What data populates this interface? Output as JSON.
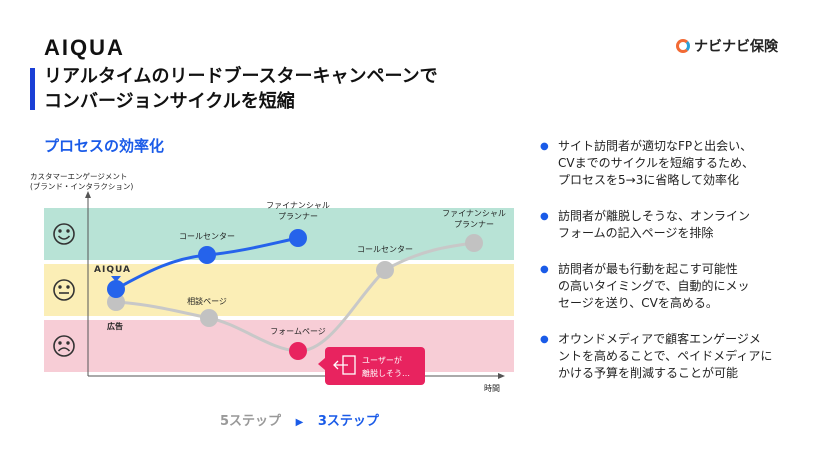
{
  "header": {
    "logo": "AIQUA",
    "title_line1": "リアルタイムのリードブースターキャンペーンで",
    "title_line2": "コンバージョンサイクルを短縮",
    "partner_logo": "ナビナビ保険"
  },
  "section_title": "プロセスの効率化",
  "diagram": {
    "y_axis_label_line1": "カスタマーエンゲージメント",
    "y_axis_label_line2": "(ブランド・インタラクション)",
    "x_axis_label": "時間",
    "faces": [
      "happy-icon",
      "neutral-icon",
      "sad-icon"
    ],
    "band_colors": [
      "#b8e3d6",
      "#fbeeb6",
      "#f7cdd6"
    ],
    "blue_path": {
      "color": "#2563eb",
      "nodes": [
        {
          "label": "AIQUA",
          "label2": ""
        },
        {
          "label": "コールセンター",
          "label2": ""
        },
        {
          "label": "ファイナンシャル",
          "label2": "プランナー"
        }
      ]
    },
    "grey_path": {
      "color": "#bdbdbd",
      "nodes": [
        {
          "label": "広告"
        },
        {
          "label": "相談ページ"
        },
        {
          "label": "フォームページ"
        },
        {
          "label": "コールセンター"
        },
        {
          "label": "ファイナンシャル",
          "label2": "プランナー"
        }
      ],
      "dropoff_color": "#e8235f"
    },
    "callout": {
      "line1": "ユーザーが",
      "line2": "離脱しそう…",
      "color": "#e8235f"
    }
  },
  "steps": {
    "old": "5ステップ",
    "arrow": "▶",
    "new": "3ステップ"
  },
  "bullets": [
    {
      "line1": "サイト訪問者が適切なFPと出会い、",
      "line2": "CVまでのサイクルを短縮するため、",
      "line3": "プロセスを5→3に省略して効率化"
    },
    {
      "line1": "訪問者が離脱しそうな、オンライン",
      "line2": "フォームの記入ページを排除",
      "line3": ""
    },
    {
      "line1": "訪問者が最も行動を起こす可能性",
      "line2": "の高いタイミングで、自動的にメッ",
      "line3": "セージを送り、CVを高める。"
    },
    {
      "line1": "オウンドメディアで顧客エンゲージメ",
      "line2": "ントを高めることで、ペイドメディアに",
      "line3": "かける予算を削減することが可能"
    }
  ]
}
